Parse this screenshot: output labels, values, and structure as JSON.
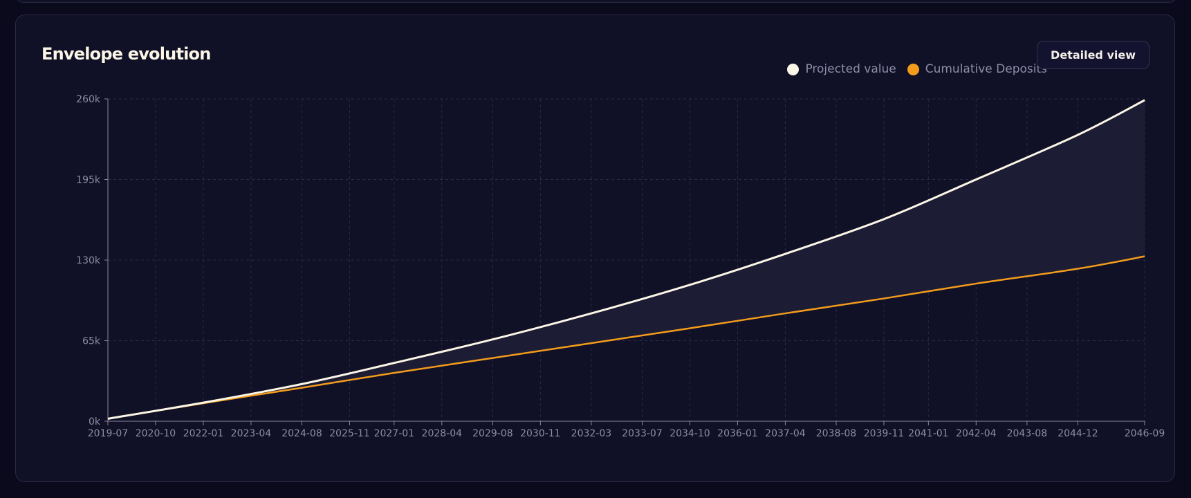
{
  "header": {
    "title": "Envelope evolution",
    "detailed_view_label": "Detailed view"
  },
  "legend": [
    {
      "label": "Projected value",
      "color": "#fbf6e6",
      "icon": "circle-dot"
    },
    {
      "label": "Cumulative Deposits",
      "color": "#f39c1b",
      "icon": "circle-dot"
    }
  ],
  "colors": {
    "background": "#0a0a1c",
    "card": "#101026",
    "projected": "#fbf6e6",
    "deposits": "#f39c1b",
    "gap_fill": "#1f1d36",
    "grid": "#2c2a47",
    "axis": "#8a87a3"
  },
  "chart_data": {
    "type": "line",
    "title": "Envelope evolution",
    "xlabel": "",
    "ylabel": "",
    "grid": true,
    "legend_position": "top-right",
    "fill_between_series": true,
    "ylim": [
      0,
      260000
    ],
    "xlim": [
      "2019-07",
      "2046-09"
    ],
    "y_ticks": [
      "0k",
      "65k",
      "130k",
      "195k",
      "260k"
    ],
    "y_tick_values": [
      0,
      65000,
      130000,
      195000,
      260000
    ],
    "x_ticks": [
      "2019-07",
      "2020-10",
      "2022-01",
      "2023-04",
      "2024-08",
      "2025-11",
      "2027-01",
      "2028-04",
      "2029-08",
      "2030-11",
      "2032-03",
      "2033-07",
      "2034-10",
      "2036-01",
      "2037-04",
      "2038-08",
      "2039-11",
      "2041-01",
      "2042-04",
      "2043-08",
      "2044-12",
      "2046-09"
    ],
    "x": [
      "2019-07",
      "2022-01",
      "2024-08",
      "2027-01",
      "2029-08",
      "2032-03",
      "2034-10",
      "2037-04",
      "2039-11",
      "2042-04",
      "2044-12",
      "2046-09"
    ],
    "series": [
      {
        "name": "Projected value",
        "values": [
          2000,
          15000,
          30000,
          47000,
          66000,
          87000,
          110000,
          135000,
          163000,
          195000,
          231000,
          259000
        ]
      },
      {
        "name": "Cumulative Deposits",
        "values": [
          2000,
          14500,
          27000,
          39000,
          51000,
          63000,
          75000,
          87000,
          99000,
          111000,
          123000,
          133000
        ]
      }
    ]
  }
}
